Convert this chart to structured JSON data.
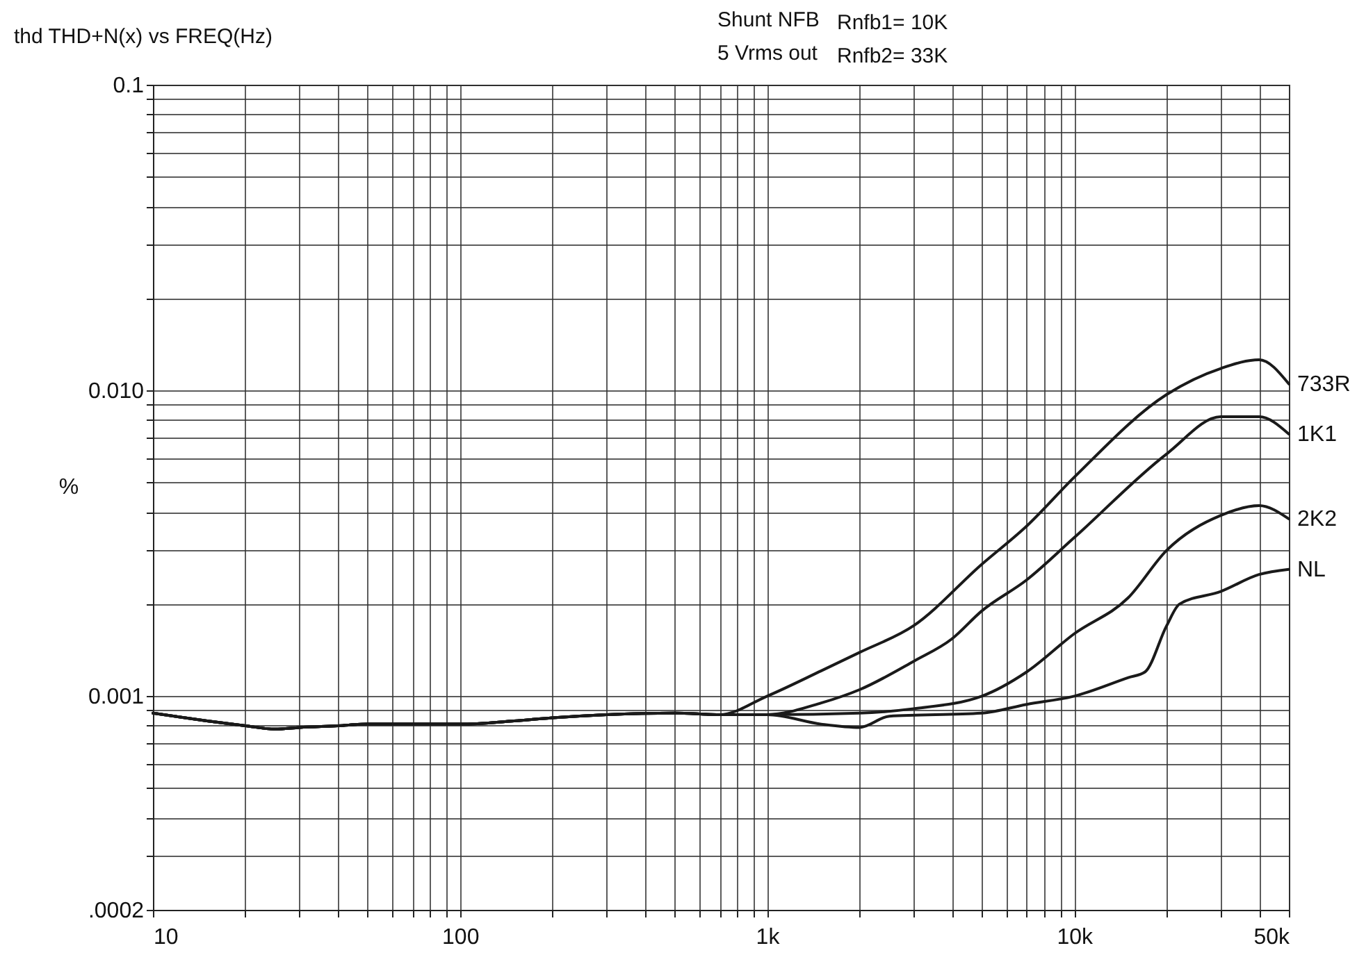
{
  "chart_data": {
    "type": "line",
    "title": "thd THD+N(x) vs FREQ(Hz)",
    "ylabel": "%",
    "annotations": [
      "Shunt NFB",
      "5 Vrms out",
      "Rnfb1= 10K",
      "Rnfb2= 33K"
    ],
    "log": "xy",
    "grid": true,
    "legend": false,
    "line_style": "solid",
    "marker": "none",
    "xlim": [
      10,
      50000
    ],
    "ylim": [
      0.0002,
      0.1
    ],
    "xticks": [
      10,
      {
        "value": 20,
        "label": null
      },
      {
        "value": 30,
        "label": null
      },
      {
        "value": 40,
        "label": null
      },
      {
        "value": 50,
        "label": null
      },
      {
        "value": 60,
        "label": null
      },
      {
        "value": 70,
        "label": null
      },
      {
        "value": 80,
        "label": null
      },
      {
        "value": 90,
        "label": null
      },
      100,
      {
        "value": 200,
        "label": null
      },
      {
        "value": 300,
        "label": null
      },
      {
        "value": 400,
        "label": null
      },
      {
        "value": 500,
        "label": null
      },
      {
        "value": 600,
        "label": null
      },
      {
        "value": 700,
        "label": null
      },
      {
        "value": 800,
        "label": null
      },
      {
        "value": 900,
        "label": null
      },
      {
        "value": 1000,
        "label": "1k"
      },
      {
        "value": 2000,
        "label": null
      },
      {
        "value": 3000,
        "label": null
      },
      {
        "value": 4000,
        "label": null
      },
      {
        "value": 5000,
        "label": null
      },
      {
        "value": 6000,
        "label": null
      },
      {
        "value": 7000,
        "label": null
      },
      {
        "value": 8000,
        "label": null
      },
      {
        "value": 9000,
        "label": null
      },
      {
        "value": 10000,
        "label": "10k"
      },
      {
        "value": 20000,
        "label": null
      },
      {
        "value": 30000,
        "label": null
      },
      {
        "value": 40000,
        "label": null
      },
      {
        "value": 50000,
        "label": "50k"
      }
    ],
    "yticks": [
      {
        "value": 0.0002,
        "label": ".0002"
      },
      {
        "value": 0.0003,
        "label": null
      },
      {
        "value": 0.0004,
        "label": null
      },
      {
        "value": 0.0005,
        "label": null
      },
      {
        "value": 0.0006,
        "label": null
      },
      {
        "value": 0.0007,
        "label": null
      },
      {
        "value": 0.0008,
        "label": null
      },
      {
        "value": 0.0009,
        "label": null
      },
      0.001,
      {
        "value": 0.002,
        "label": null
      },
      {
        "value": 0.003,
        "label": null
      },
      {
        "value": 0.004,
        "label": null
      },
      {
        "value": 0.005,
        "label": null
      },
      {
        "value": 0.006,
        "label": null
      },
      {
        "value": 0.007,
        "label": null
      },
      {
        "value": 0.008,
        "label": null
      },
      {
        "value": 0.009,
        "label": null
      },
      {
        "value": 0.01,
        "label": "0.010"
      },
      {
        "value": 0.02,
        "label": null
      },
      {
        "value": 0.03,
        "label": null
      },
      {
        "value": 0.04,
        "label": null
      },
      {
        "value": 0.05,
        "label": null
      },
      {
        "value": 0.06,
        "label": null
      },
      {
        "value": 0.07,
        "label": null
      },
      {
        "value": 0.08,
        "label": null
      },
      {
        "value": 0.09,
        "label": null
      },
      0.1
    ],
    "series": [
      {
        "name": "733R",
        "color": "#1a1a1a",
        "x": [
          10,
          15,
          20,
          25,
          30,
          40,
          50,
          70,
          100,
          150,
          200,
          300,
          500,
          700,
          1000,
          1500,
          2000,
          3000,
          5000,
          7000,
          10000,
          20000,
          30000,
          40000,
          50000
        ],
        "values": [
          0.00088,
          0.00083,
          0.0008,
          0.00078,
          0.00079,
          0.0008,
          0.00081,
          0.00081,
          0.00081,
          0.00083,
          0.00085,
          0.00087,
          0.00088,
          0.00087,
          0.001,
          0.00121,
          0.00139,
          0.0017,
          0.0027,
          0.0036,
          0.0052,
          0.0097,
          0.0118,
          0.0126,
          0.0105
        ]
      },
      {
        "name": "1K1",
        "color": "#1a1a1a",
        "x": [
          10,
          15,
          20,
          25,
          30,
          40,
          50,
          70,
          100,
          150,
          200,
          300,
          500,
          700,
          1000,
          1500,
          2000,
          3000,
          4000,
          5000,
          7000,
          10000,
          20000,
          30000,
          40000,
          50000
        ],
        "values": [
          0.00088,
          0.00083,
          0.0008,
          0.00078,
          0.00079,
          0.0008,
          0.00081,
          0.00081,
          0.00081,
          0.00083,
          0.00085,
          0.00087,
          0.00088,
          0.00087,
          0.00087,
          0.00095,
          0.00105,
          0.0013,
          0.00154,
          0.0019,
          0.0024,
          0.0033,
          0.0062,
          0.0082,
          0.0082,
          0.0072
        ]
      },
      {
        "name": "2K2",
        "color": "#1a1a1a",
        "x": [
          10,
          15,
          20,
          25,
          30,
          40,
          50,
          70,
          100,
          150,
          200,
          300,
          500,
          700,
          1000,
          2000,
          3000,
          5000,
          7000,
          10000,
          15000,
          20000,
          30000,
          40000,
          50000
        ],
        "values": [
          0.00088,
          0.00083,
          0.0008,
          0.00078,
          0.00079,
          0.0008,
          0.00081,
          0.00081,
          0.00081,
          0.00083,
          0.00085,
          0.00087,
          0.00088,
          0.00087,
          0.00087,
          0.00088,
          0.00091,
          0.001,
          0.0012,
          0.0016,
          0.0021,
          0.003,
          0.0039,
          0.0042,
          0.0038
        ]
      },
      {
        "name": "NL",
        "color": "#1a1a1a",
        "x": [
          10,
          15,
          20,
          25,
          30,
          40,
          50,
          70,
          100,
          150,
          200,
          300,
          500,
          700,
          1000,
          1500,
          2000,
          2500,
          5000,
          7000,
          10000,
          15000,
          17000,
          20000,
          22000,
          30000,
          40000,
          50000
        ],
        "values": [
          0.00088,
          0.00083,
          0.0008,
          0.00078,
          0.00079,
          0.0008,
          0.00081,
          0.00081,
          0.00081,
          0.00083,
          0.00085,
          0.00087,
          0.00088,
          0.00087,
          0.00087,
          0.00081,
          0.00079,
          0.00086,
          0.00088,
          0.00094,
          0.001,
          0.00115,
          0.0012,
          0.0017,
          0.002,
          0.0022,
          0.0025,
          0.0026
        ]
      }
    ]
  }
}
